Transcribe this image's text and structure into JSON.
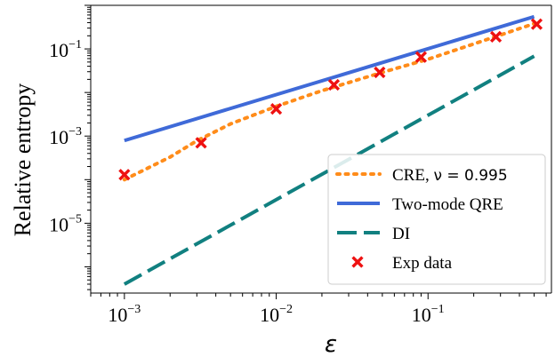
{
  "chart_data": {
    "type": "line",
    "xlabel": "ε",
    "ylabel": "Relative entropy",
    "xscale": "log",
    "yscale": "log",
    "xlim": [
      0.0006,
      0.65
    ],
    "ylim": [
      2.5e-07,
      1.0
    ],
    "x_ticks": [
      {
        "value": 0.001,
        "base": "10",
        "exp": "−3"
      },
      {
        "value": 0.01,
        "base": "10",
        "exp": "−2"
      },
      {
        "value": 0.1,
        "base": "10",
        "exp": "−1"
      }
    ],
    "y_ticks": [
      {
        "value": 0.1,
        "base": "10",
        "exp": "−1"
      },
      {
        "value": 0.001,
        "base": "10",
        "exp": "−3"
      },
      {
        "value": 1e-05,
        "base": "10",
        "exp": "−5"
      }
    ],
    "grid": false,
    "legend_position": "lower-right",
    "series": [
      {
        "name": "CRE, ",
        "name_math": "ν = 0.995",
        "style": "dotted",
        "color": "#ff8c1a",
        "x": [
          0.001,
          0.002,
          0.003,
          0.005,
          0.01,
          0.02,
          0.05,
          0.1,
          0.2,
          0.5
        ],
        "y": [
          0.0001,
          0.00033,
          0.00078,
          0.0019,
          0.0048,
          0.011,
          0.029,
          0.058,
          0.13,
          0.38
        ]
      },
      {
        "name": "Two-mode QRE",
        "style": "solid",
        "color": "#3f6ad8",
        "x": [
          0.001,
          0.5
        ],
        "y": [
          0.00079,
          0.55
        ]
      },
      {
        "name": "DI",
        "style": "dashed",
        "color": "#118080",
        "x": [
          0.001,
          0.5
        ],
        "y": [
          4e-07,
          0.068
        ]
      },
      {
        "name": "Exp data",
        "style": "marker-x",
        "color": "#ee1111",
        "x": [
          0.001,
          0.0032,
          0.01,
          0.024,
          0.048,
          0.09,
          0.28,
          0.52
        ],
        "y": [
          0.00013,
          0.0007,
          0.0042,
          0.015,
          0.029,
          0.065,
          0.19,
          0.37
        ]
      }
    ]
  }
}
